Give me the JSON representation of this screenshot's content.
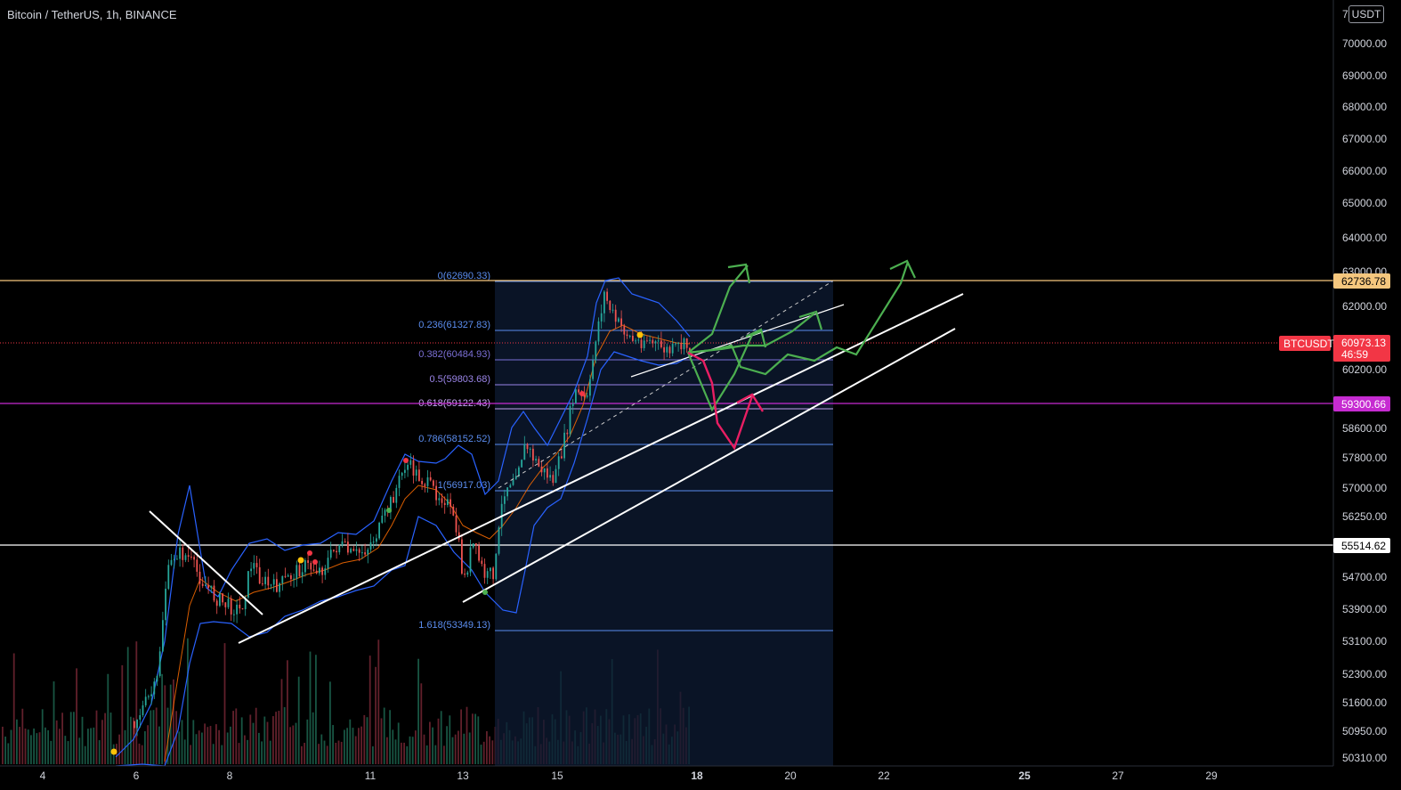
{
  "legend": "Bitcoin / TetherUS, 1h, BINANCE",
  "unit": "USDT",
  "chart_data": {
    "type": "candlestick",
    "symbol": "BTCUSDT",
    "y_axis": {
      "ticks": [
        "70000.00",
        "69000.00",
        "68000.00",
        "67000.00",
        "66000.00",
        "65000.00",
        "64000.00",
        "63000.00",
        "62000.00",
        "60200.00",
        "58600.00",
        "57800.00",
        "57000.00",
        "56250.00",
        "54700.00",
        "53900.00",
        "53100.00",
        "52300.00",
        "51600.00",
        "50950.00",
        "50310.00"
      ],
      "top_partial": "7"
    },
    "x_axis": {
      "ticks": [
        {
          "label": "4",
          "bold": false
        },
        {
          "label": "6",
          "bold": false
        },
        {
          "label": "8",
          "bold": false
        },
        {
          "label": "11",
          "bold": false
        },
        {
          "label": "13",
          "bold": false
        },
        {
          "label": "15",
          "bold": false
        },
        {
          "label": "18",
          "bold": true
        },
        {
          "label": "20",
          "bold": false
        },
        {
          "label": "22",
          "bold": false
        },
        {
          "label": "25",
          "bold": true
        },
        {
          "label": "27",
          "bold": false
        },
        {
          "label": "29",
          "bold": false
        }
      ]
    },
    "price_tags": [
      {
        "value": "62736.78",
        "color": "#f5c77e",
        "text_color": "#000000"
      },
      {
        "value": "60973.13",
        "sub": "46:59",
        "symbol": "BTCUSDT",
        "color": "#f23645",
        "text_color": "#ffffff"
      },
      {
        "value": "59300.66",
        "color": "#c62bd1",
        "text_color": "#ffffff"
      },
      {
        "value": "55514.62",
        "color": "#ffffff",
        "text_color": "#000000"
      }
    ],
    "fib_levels": [
      {
        "label": "0(62690.33)",
        "color": "#5b8def"
      },
      {
        "label": "0.236(61327.83)",
        "color": "#5b8def"
      },
      {
        "label": "0.382(60484.93)",
        "color": "#7b6fd6"
      },
      {
        "label": "0.5(59803.68)",
        "color": "#9b85e8"
      },
      {
        "label": "0.618(59122.43)",
        "color": "#c2a2f0"
      },
      {
        "label": "0.786(58152.52)",
        "color": "#5b8def"
      },
      {
        "label": "1(56917.03)",
        "color": "#5b8def"
      },
      {
        "label": "1.618(53349.13)",
        "color": "#5b8def"
      }
    ]
  }
}
